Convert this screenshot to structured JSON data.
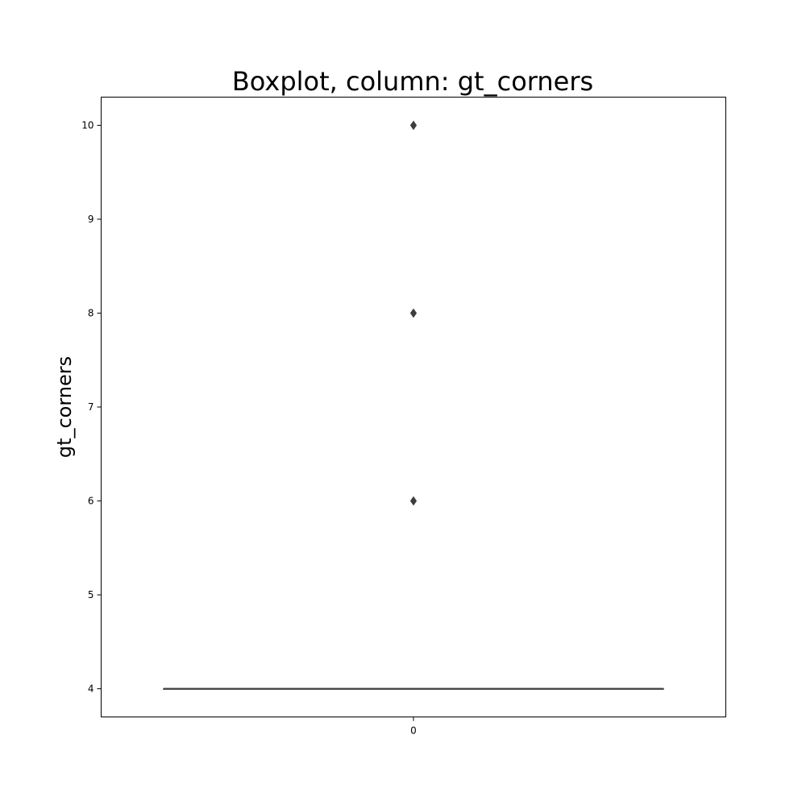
{
  "chart_data": {
    "type": "boxplot",
    "title": "Boxplot, column: gt_corners",
    "xlabel": "",
    "ylabel": "gt_corners",
    "categories": [
      "0"
    ],
    "yticks": [
      4,
      5,
      6,
      7,
      8,
      9,
      10
    ],
    "ylim": [
      3.7,
      10.3
    ],
    "grid": false,
    "series": [
      {
        "category": "0",
        "whisker_low": 4,
        "q1": 4,
        "median": 4,
        "q3": 4,
        "whisker_high": 4,
        "outliers": [
          6,
          8,
          10
        ]
      }
    ],
    "colors": {
      "box": "#3d3d3d",
      "outlier": "#3d3d3d",
      "frame": "#000000"
    }
  }
}
